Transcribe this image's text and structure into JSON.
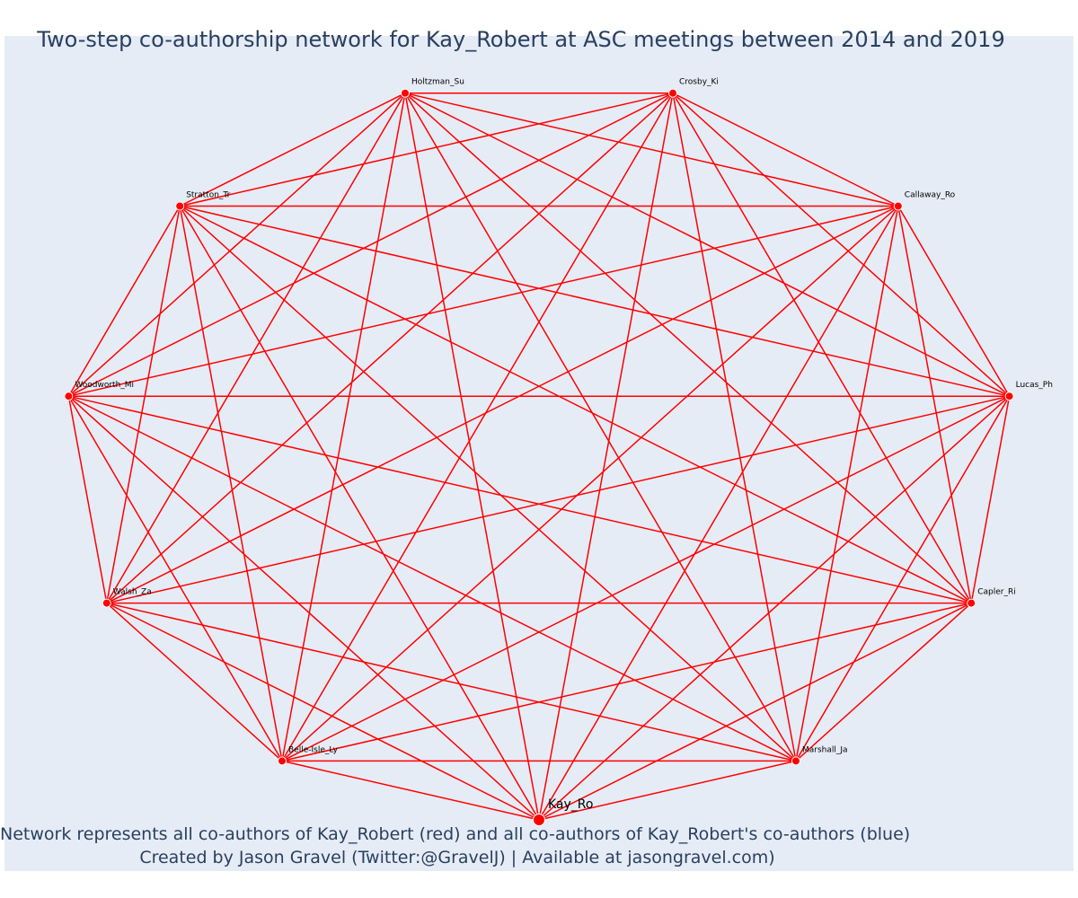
{
  "title": "Two-step co-authorship network for Kay_Robert at ASC meetings between 2014 and 2019",
  "captions": {
    "line1": "Network represents all co-authors of Kay_Robert (red) and all co-authors of Kay_Robert's co-authors (blue)",
    "line2": "Created by Jason Gravel (Twitter:@GravelJ) | Available at jasongravel.com)"
  },
  "colors": {
    "edge": "#ff0000",
    "node": "#ff0000",
    "background": "#e5ecf6",
    "text": "#2a3f5f"
  },
  "network": {
    "layout": "circular",
    "focal_node": "Kay_Ro",
    "nodes": [
      {
        "id": "Kay_Ro",
        "label": "Kay_Ro",
        "group": "co-author",
        "focal": true
      },
      {
        "id": "Marshall_Ja",
        "label": "Marshall_Ja",
        "group": "co-author"
      },
      {
        "id": "Capler_Ri",
        "label": "Capler_Ri",
        "group": "co-author"
      },
      {
        "id": "Lucas_Ph",
        "label": "Lucas_Ph",
        "group": "co-author"
      },
      {
        "id": "Callaway_Ro",
        "label": "Callaway_Ro",
        "group": "co-author"
      },
      {
        "id": "Crosby_Ki",
        "label": "Crosby_Ki",
        "group": "co-author"
      },
      {
        "id": "Holtzman_Su",
        "label": "Holtzman_Su",
        "group": "co-author"
      },
      {
        "id": "Stratton_Tr",
        "label": "Stratton_Tr",
        "group": "co-author"
      },
      {
        "id": "Woodworth_Mi",
        "label": "Woodworth_Mi",
        "group": "co-author"
      },
      {
        "id": "Walsh_Za",
        "label": "Walsh_Za",
        "group": "co-author"
      },
      {
        "id": "Belle-Isle_Ly",
        "label": "Belle-Isle_Ly",
        "group": "co-author"
      }
    ],
    "edges": "complete"
  }
}
